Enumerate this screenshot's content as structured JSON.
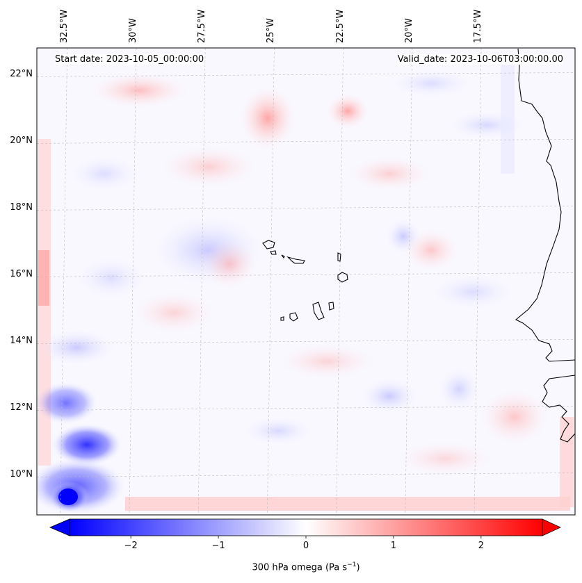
{
  "header": {
    "start_date": "Start date: 2023-10-05_00:00:00",
    "valid_date": "Valid_date: 2023-10-06T03:00:00.00"
  },
  "map": {
    "field": "300 hPa omega",
    "units": "Pa s-1",
    "lon_range": [
      -33.5,
      -14.0
    ],
    "lat_range": [
      8.8,
      22.8
    ],
    "longitude_labels": [
      "32.5°W",
      "30°W",
      "27.5°W",
      "25°W",
      "22.5°W",
      "20°W",
      "17.5°W"
    ],
    "latitude_labels": [
      "22°N",
      "20°N",
      "18°N",
      "16°N",
      "14°N",
      "12°N",
      "10°N"
    ],
    "gridlines": true,
    "colors": {
      "negative": "#0000ff",
      "zero": "#ffffff",
      "positive": "#ff0000",
      "coast": "#000000"
    }
  },
  "colorbar": {
    "label_text": "300 hPa omega (Pa s",
    "label_exp": "−1",
    "label_close": ")",
    "range": [
      -2.7,
      2.7
    ],
    "ticks": [
      -2,
      -1,
      0,
      1,
      2
    ],
    "tick_labels": [
      "−2",
      "−1",
      "0",
      "1",
      "2"
    ],
    "orientation": "horizontal",
    "extend": "both"
  }
}
